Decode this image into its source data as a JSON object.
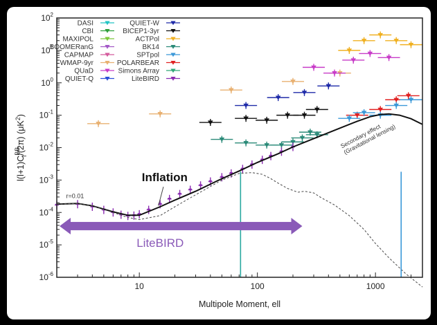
{
  "chart_data": {
    "type": "scatter",
    "xlabel": "Multipole Moment, ell",
    "ylabel": "l(l+1)C_l^BB/(2π) (μK²)",
    "ylabel_parts": {
      "main": "l(l+1)C",
      "sub": "l",
      "sup": "BB",
      "rest": "/(2π) (μK",
      "sq": "2",
      "close": ")"
    },
    "xscale": "log",
    "yscale": "log",
    "xlim": [
      2,
      2500
    ],
    "ylim": [
      1e-06,
      100
    ],
    "x_ticks": [
      {
        "v": 10,
        "label": "10"
      },
      {
        "v": 100,
        "label": "100"
      },
      {
        "v": 1000,
        "label": "1000"
      }
    ],
    "y_ticks": [
      {
        "v": 1e-06,
        "m": "10",
        "e": "-6"
      },
      {
        "v": 1e-05,
        "m": "10",
        "e": "-5"
      },
      {
        "v": 0.0001,
        "m": "10",
        "e": "-4"
      },
      {
        "v": 0.001,
        "m": "10",
        "e": "-3"
      },
      {
        "v": 0.01,
        "m": "10",
        "e": "-2"
      },
      {
        "v": 0.1,
        "m": "10",
        "e": "-1"
      },
      {
        "v": 1,
        "m": "10",
        "e": "0"
      },
      {
        "v": 10,
        "m": "10",
        "e": "1"
      },
      {
        "v": 100,
        "m": "10",
        "e": "2"
      }
    ],
    "legend_placement": "top-left",
    "legend": [
      {
        "name": "DASI",
        "color": "#22c4c4"
      },
      {
        "name": "CBI",
        "color": "#2e9e3a"
      },
      {
        "name": "MAXIPOL",
        "color": "#7cc83a"
      },
      {
        "name": "BOOMERanG",
        "color": "#a358c6"
      },
      {
        "name": "CAPMAP",
        "color": "#d45a9c"
      },
      {
        "name": "WMAP-9yr",
        "color": "#e8b070"
      },
      {
        "name": "QUaD",
        "color": "#c83cc8"
      },
      {
        "name": "QUIET-Q",
        "color": "#2a4ed8"
      },
      {
        "name": "QUIET-W",
        "color": "#1e2aa8"
      },
      {
        "name": "BICEP1-3yr",
        "color": "#111111"
      },
      {
        "name": "ACTPol",
        "color": "#f0b020"
      },
      {
        "name": "BK14",
        "color": "#2a8a78"
      },
      {
        "name": "SPTpol",
        "color": "#3a98d8"
      },
      {
        "name": "POLARBEAR",
        "color": "#e02020"
      },
      {
        "name": "Simons Array",
        "color": "#30a878"
      },
      {
        "name": "LiteBIRD",
        "color": "#8a2ab0"
      }
    ],
    "series": [
      {
        "name": "WMAP-9yr",
        "color": "#e8b070",
        "points": [
          [
            4.5,
            0.055
          ],
          [
            15,
            0.11
          ],
          [
            60,
            0.6
          ],
          [
            200,
            1.1
          ],
          [
            500,
            2
          ]
        ]
      },
      {
        "name": "QUaD",
        "color": "#c83cc8",
        "points": [
          [
            300,
            3
          ],
          [
            450,
            2
          ],
          [
            650,
            5
          ],
          [
            900,
            8
          ],
          [
            1300,
            6
          ]
        ]
      },
      {
        "name": "ACTPol",
        "color": "#f0b020",
        "points": [
          [
            600,
            10
          ],
          [
            800,
            20
          ],
          [
            1100,
            30
          ],
          [
            1500,
            20
          ],
          [
            2000,
            15
          ]
        ]
      },
      {
        "name": "QUIET-W",
        "color": "#1e2aa8",
        "points": [
          [
            80,
            0.2
          ],
          [
            150,
            0.35
          ],
          [
            250,
            0.5
          ],
          [
            400,
            0.8
          ]
        ]
      },
      {
        "name": "BICEP1-3yr",
        "color": "#111111",
        "points": [
          [
            40,
            0.06
          ],
          [
            80,
            0.08
          ],
          [
            120,
            0.07
          ],
          [
            180,
            0.1
          ],
          [
            250,
            0.1
          ],
          [
            320,
            0.15
          ]
        ]
      },
      {
        "name": "BK14",
        "color": "#2a8a78",
        "points": [
          [
            50,
            0.018
          ],
          [
            80,
            0.014
          ],
          [
            120,
            0.012
          ],
          [
            160,
            0.012
          ],
          [
            200,
            0.015
          ],
          [
            240,
            0.02
          ],
          [
            280,
            0.03
          ],
          [
            320,
            0.025
          ]
        ]
      },
      {
        "name": "POLARBEAR",
        "color": "#e02020",
        "points": [
          [
            700,
            0.1
          ],
          [
            1100,
            0.15
          ],
          [
            1500,
            0.3
          ],
          [
            1900,
            0.4
          ]
        ]
      },
      {
        "name": "SPTpol",
        "color": "#3a98d8",
        "points": [
          [
            600,
            0.08
          ],
          [
            800,
            0.12
          ],
          [
            1100,
            0.1
          ],
          [
            1500,
            0.2
          ],
          [
            2000,
            0.3
          ]
        ]
      },
      {
        "name": "LiteBIRD",
        "color": "#8a2ab0",
        "points": [
          [
            2,
            0.00017
          ],
          [
            3,
            0.00018
          ],
          [
            4,
            0.00015
          ],
          [
            5,
            0.00012
          ],
          [
            6,
            0.0001
          ],
          [
            7,
            8.5e-05
          ],
          [
            8,
            7.8e-05
          ],
          [
            9,
            8e-05
          ],
          [
            10,
            8.8e-05
          ],
          [
            12,
            0.00012
          ],
          [
            15,
            0.00018
          ],
          [
            18,
            0.00026
          ],
          [
            22,
            0.00037
          ],
          [
            27,
            0.0005
          ],
          [
            33,
            0.00068
          ],
          [
            40,
            0.0009
          ],
          [
            50,
            0.00122
          ],
          [
            60,
            0.0016
          ],
          [
            75,
            0.0022
          ],
          [
            90,
            0.003
          ],
          [
            110,
            0.0042
          ],
          [
            130,
            0.0055
          ],
          [
            160,
            0.0075
          ],
          [
            200,
            0.0105
          ]
        ]
      }
    ],
    "curves": [
      {
        "name": "total",
        "style": "solid",
        "points": [
          [
            2,
            0.00018
          ],
          [
            3,
            0.00019
          ],
          [
            4,
            0.00016
          ],
          [
            6,
            0.000105
          ],
          [
            8,
            8.2e-05
          ],
          [
            10,
            8.2e-05
          ],
          [
            15,
            0.00015
          ],
          [
            20,
            0.00024
          ],
          [
            30,
            0.00045
          ],
          [
            50,
            0.0011
          ],
          [
            70,
            0.0019
          ],
          [
            100,
            0.0035
          ],
          [
            150,
            0.0065
          ],
          [
            200,
            0.0105
          ],
          [
            300,
            0.019
          ],
          [
            500,
            0.04
          ],
          [
            700,
            0.065
          ],
          [
            900,
            0.09
          ],
          [
            1100,
            0.105
          ],
          [
            1300,
            0.11
          ],
          [
            1600,
            0.1
          ],
          [
            2000,
            0.078
          ],
          [
            2500,
            0.052
          ]
        ]
      },
      {
        "name": "inflation",
        "style": "dashed",
        "points": [
          [
            2,
            0.00018
          ],
          [
            3,
            0.00019
          ],
          [
            4,
            0.00016
          ],
          [
            6,
            0.0001
          ],
          [
            8,
            7e-05
          ],
          [
            10,
            6e-05
          ],
          [
            15,
            8e-05
          ],
          [
            20,
            0.00015
          ],
          [
            30,
            0.00035
          ],
          [
            50,
            0.001
          ],
          [
            70,
            0.0016
          ],
          [
            90,
            0.0017
          ],
          [
            110,
            0.0015
          ],
          [
            130,
            0.0011
          ],
          [
            150,
            0.0008
          ],
          [
            180,
            0.00055
          ],
          [
            220,
            0.00042
          ],
          [
            250,
            0.00045
          ],
          [
            300,
            0.0004
          ],
          [
            350,
            0.00028
          ],
          [
            450,
            0.00017
          ],
          [
            600,
            8e-05
          ],
          [
            800,
            3e-05
          ],
          [
            1000,
            1.1e-05
          ],
          [
            1300,
            4e-06
          ],
          [
            1800,
            1.3e-06
          ],
          [
            2500,
            5e-07
          ]
        ]
      }
    ],
    "vlines": [
      {
        "x": 72,
        "color": "#2aa8a0"
      },
      {
        "x": 1650,
        "color": "#3a98d8"
      }
    ],
    "annotations": {
      "inflation": "Inflation",
      "r": "r=0.01",
      "secondary_line1": "Secondary effect",
      "secondary_line2": "(Gravitational lensing)",
      "band": "LiteBIRD"
    },
    "band_range": [
      2,
      240
    ],
    "band_y": 3.8e-05
  }
}
